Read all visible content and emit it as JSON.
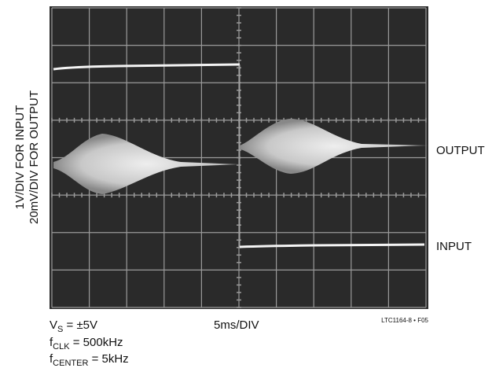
{
  "y_axis_labels": [
    "1V/DIV FOR INPUT",
    "20mV/DIV FOR OUTPUT"
  ],
  "trace_labels": {
    "output": "OUTPUT",
    "input": "INPUT"
  },
  "x_axis_label": "5ms/DIV",
  "figure_id": "LTC1164-8 • F05",
  "conditions": [
    {
      "symbol": "V",
      "subscript": "S",
      "text": " = ±5V"
    },
    {
      "symbol": "f",
      "subscript": "CLK",
      "text": " = 500kHz"
    },
    {
      "symbol": "f",
      "subscript": "CENTER",
      "text": " = 5kHz"
    }
  ]
}
